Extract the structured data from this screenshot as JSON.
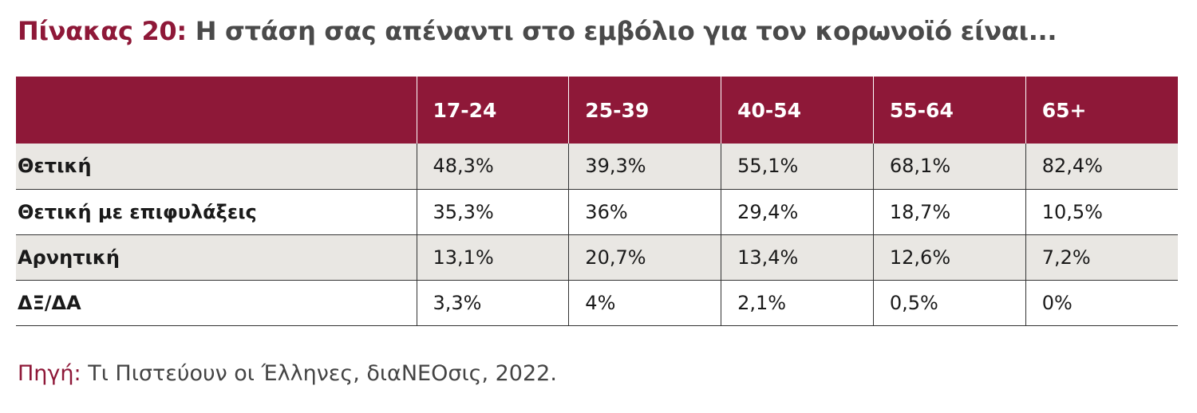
{
  "title": {
    "prefix": "Πίνακας 20:",
    "text": "Η στάση σας απέναντι στο εμβόλιο για τον κορωνοϊό είναι..."
  },
  "source": {
    "prefix": "Πηγή:",
    "text": "Τι Πιστεύουν οι Έλληνες, διαΝΕΟσις, 2022."
  },
  "colors": {
    "header_bg": "#8e1838",
    "stripe_bg": "#e9e7e3",
    "title_prefix": "#8e1838"
  },
  "chart_data": {
    "type": "table",
    "columns": [
      "",
      "17-24",
      "25-39",
      "40-54",
      "55-64",
      "65+"
    ],
    "rows": [
      {
        "label": "Θετική",
        "values": [
          "48,3%",
          "39,3%",
          "55,1%",
          "68,1%",
          "82,4%"
        ]
      },
      {
        "label": "Θετική με επιφυλάξεις",
        "values": [
          "35,3%",
          "36%",
          "29,4%",
          "18,7%",
          "10,5%"
        ]
      },
      {
        "label": "Αρνητική",
        "values": [
          "13,1%",
          "20,7%",
          "13,4%",
          "12,6%",
          "7,2%"
        ]
      },
      {
        "label": "ΔΞ/ΔΑ",
        "values": [
          "3,3%",
          "4%",
          "2,1%",
          "0,5%",
          "0%"
        ]
      }
    ]
  }
}
